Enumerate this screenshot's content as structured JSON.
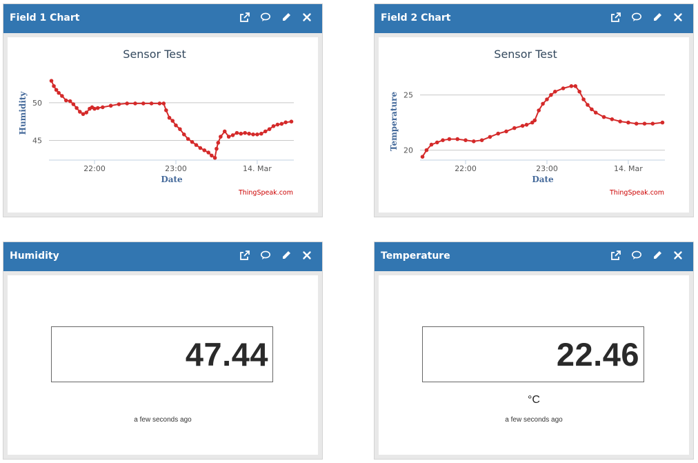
{
  "widgets": {
    "field1": {
      "title": "Field 1 Chart"
    },
    "field2": {
      "title": "Field 2 Chart"
    },
    "humidity": {
      "title": "Humidity",
      "value": "47.44",
      "unit": "",
      "updated": "a few seconds ago"
    },
    "temperature": {
      "title": "Temperature",
      "value": "22.46",
      "unit": "°C",
      "updated": "a few seconds ago"
    }
  },
  "icons": [
    "open-external-icon",
    "comment-icon",
    "pencil-icon",
    "close-icon"
  ],
  "colors": {
    "header": "#3276b1",
    "line": "#d42a2a",
    "credit": "#cc0000",
    "axis_title": "#44699a"
  },
  "chart_data": [
    {
      "type": "line",
      "title": "Sensor Test",
      "xlabel": "Date",
      "ylabel": "Humidity",
      "credit": "ThingSpeak.com",
      "x_ticks": [
        {
          "t": 0.0,
          "label": "22:00"
        },
        {
          "t": 1.0,
          "label": "23:00"
        },
        {
          "t": 2.0,
          "label": "14. Mar"
        }
      ],
      "x_range": [
        -0.56,
        2.45
      ],
      "y_ticks": [
        45,
        50
      ],
      "ylim": [
        42.4,
        54.1
      ],
      "series": [
        {
          "name": "Humidity",
          "x": [
            -0.53,
            -0.5,
            -0.47,
            -0.44,
            -0.4,
            -0.35,
            -0.3,
            -0.26,
            -0.22,
            -0.18,
            -0.14,
            -0.1,
            -0.06,
            -0.03,
            0.0,
            0.04,
            0.1,
            0.2,
            0.3,
            0.4,
            0.5,
            0.6,
            0.7,
            0.8,
            0.85,
            0.88,
            0.92,
            0.96,
            1.0,
            1.05,
            1.1,
            1.15,
            1.2,
            1.25,
            1.3,
            1.35,
            1.4,
            1.44,
            1.48,
            1.5,
            1.52,
            1.55,
            1.6,
            1.65,
            1.7,
            1.75,
            1.8,
            1.85,
            1.9,
            1.95,
            2.0,
            2.05,
            2.1,
            2.15,
            2.2,
            2.25,
            2.3,
            2.35,
            2.42
          ],
          "values": [
            52.9,
            52.2,
            51.7,
            51.3,
            50.9,
            50.3,
            50.2,
            49.8,
            49.3,
            48.8,
            48.5,
            48.7,
            49.2,
            49.4,
            49.2,
            49.3,
            49.4,
            49.6,
            49.8,
            49.9,
            49.9,
            49.9,
            49.9,
            49.9,
            49.9,
            49.0,
            48.0,
            47.6,
            47.0,
            46.5,
            45.8,
            45.2,
            44.8,
            44.4,
            44.0,
            43.7,
            43.4,
            43.0,
            42.7,
            43.9,
            44.7,
            45.5,
            46.2,
            45.5,
            45.7,
            46.0,
            45.9,
            46.0,
            45.9,
            45.8,
            45.8,
            45.9,
            46.2,
            46.5,
            46.9,
            47.1,
            47.2,
            47.4,
            47.5
          ]
        }
      ]
    },
    {
      "type": "line",
      "title": "Sensor Test",
      "xlabel": "Date",
      "ylabel": "Temperature",
      "credit": "ThingSpeak.com",
      "x_ticks": [
        {
          "t": 0.0,
          "label": "22:00"
        },
        {
          "t": 1.0,
          "label": "23:00"
        },
        {
          "t": 2.0,
          "label": "14. Mar"
        }
      ],
      "x_range": [
        -0.56,
        2.45
      ],
      "y_ticks": [
        20,
        25
      ],
      "ylim": [
        19.1,
        27.1
      ],
      "series": [
        {
          "name": "Temperature",
          "x": [
            -0.53,
            -0.48,
            -0.42,
            -0.35,
            -0.28,
            -0.2,
            -0.1,
            0.0,
            0.1,
            0.2,
            0.3,
            0.4,
            0.5,
            0.6,
            0.7,
            0.75,
            0.82,
            0.85,
            0.9,
            0.95,
            1.0,
            1.05,
            1.1,
            1.2,
            1.3,
            1.35,
            1.4,
            1.45,
            1.5,
            1.55,
            1.6,
            1.7,
            1.8,
            1.9,
            2.0,
            2.1,
            2.2,
            2.3,
            2.42
          ],
          "values": [
            19.4,
            20.0,
            20.5,
            20.7,
            20.9,
            21.0,
            21.0,
            20.9,
            20.8,
            20.9,
            21.2,
            21.5,
            21.7,
            22.0,
            22.2,
            22.3,
            22.5,
            22.7,
            23.6,
            24.2,
            24.6,
            25.0,
            25.3,
            25.6,
            25.8,
            25.8,
            25.3,
            24.6,
            24.1,
            23.7,
            23.4,
            23.0,
            22.8,
            22.6,
            22.5,
            22.4,
            22.4,
            22.4,
            22.5
          ]
        }
      ]
    }
  ]
}
